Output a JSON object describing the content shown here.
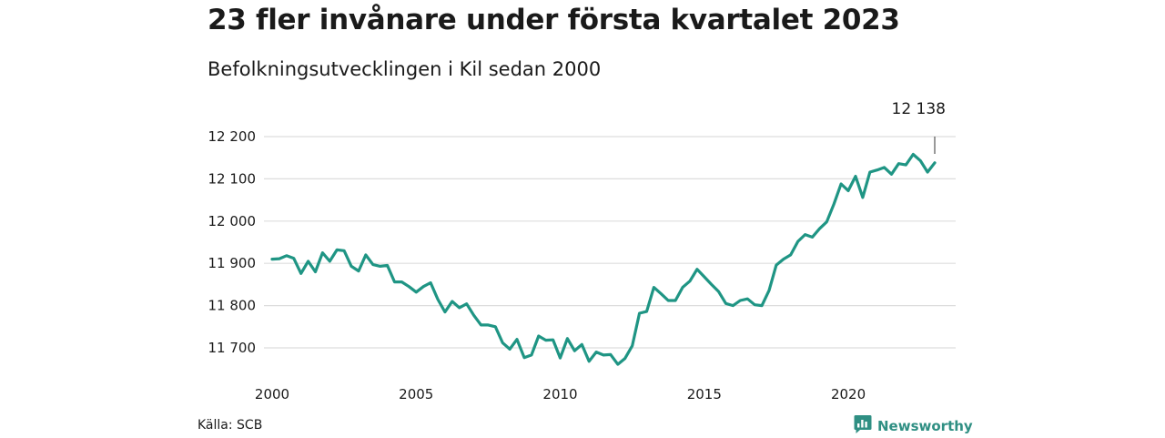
{
  "header": {
    "title": "23 fler invånare under första kvartalet 2023",
    "subtitle": "Befolkningsutvecklingen i Kil sedan 2000"
  },
  "footer": {
    "source": "Källa: SCB",
    "brand": "Newsworthy"
  },
  "colors": {
    "line": "#1f9584",
    "grid": "#dddddd",
    "brand": "#2f8f83"
  },
  "chart_data": {
    "type": "line",
    "title": "23 fler invånare under första kvartalet 2023",
    "subtitle": "Befolkningsutvecklingen i Kil sedan 2000",
    "xlabel": "",
    "ylabel": "",
    "xlim": [
      2000,
      2023
    ],
    "ylim": [
      11650,
      12220
    ],
    "grid": true,
    "x_ticks": [
      2000,
      2005,
      2010,
      2015,
      2020
    ],
    "x_tick_labels": [
      "2000",
      "2005",
      "2010",
      "2015",
      "2020"
    ],
    "y_ticks": [
      11700,
      11800,
      11900,
      12000,
      12100,
      12200
    ],
    "y_tick_labels": [
      "11 700",
      "11 800",
      "11 900",
      "12 000",
      "12 100",
      "12 200"
    ],
    "annotation": {
      "label": "12 138",
      "x": 2023.0,
      "y": 12138
    },
    "series": [
      {
        "x": [
          2000.0,
          2000.25,
          2000.5,
          2000.75,
          2001.0,
          2001.25,
          2001.5,
          2001.75,
          2002.0,
          2002.25,
          2002.5,
          2002.75,
          2003.0,
          2003.25,
          2003.5,
          2003.75,
          2004.0,
          2004.25,
          2004.5,
          2004.75,
          2005.0,
          2005.25,
          2005.5,
          2005.75,
          2006.0,
          2006.25,
          2006.5,
          2006.75,
          2007.0,
          2007.25,
          2007.5,
          2007.75,
          2008.0,
          2008.25,
          2008.5,
          2008.75,
          2009.0,
          2009.25,
          2009.5,
          2009.75,
          2010.0,
          2010.25,
          2010.5,
          2010.75,
          2011.0,
          2011.25,
          2011.5,
          2011.75,
          2012.0,
          2012.25,
          2012.5,
          2012.75,
          2013.0,
          2013.25,
          2013.5,
          2013.75,
          2014.0,
          2014.25,
          2014.5,
          2014.75,
          2015.0,
          2015.25,
          2015.5,
          2015.75,
          2016.0,
          2016.25,
          2016.5,
          2016.75,
          2017.0,
          2017.25,
          2017.5,
          2017.75,
          2018.0,
          2018.25,
          2018.5,
          2018.75,
          2019.0,
          2019.25,
          2019.5,
          2019.75,
          2020.0,
          2020.25,
          2020.5,
          2020.75,
          2021.0,
          2021.25,
          2021.5,
          2021.75,
          2022.0,
          2022.25,
          2022.5,
          2022.75,
          2023.0
        ],
        "values": [
          11910,
          11911,
          11918,
          11912,
          11876,
          11905,
          11880,
          11925,
          11905,
          11932,
          11930,
          11893,
          11882,
          11920,
          11897,
          11893,
          11895,
          11856,
          11856,
          11845,
          11832,
          11845,
          11854,
          11815,
          11785,
          11810,
          11795,
          11804,
          11777,
          11754,
          11754,
          11750,
          11712,
          11697,
          11720,
          11677,
          11683,
          11728,
          11718,
          11719,
          11676,
          11722,
          11693,
          11708,
          11668,
          11690,
          11683,
          11684,
          11661,
          11675,
          11705,
          11782,
          11786,
          11843,
          11828,
          11812,
          11812,
          11843,
          11858,
          11886,
          11868,
          11850,
          11833,
          11805,
          11800,
          11812,
          11816,
          11802,
          11800,
          11836,
          11896,
          11910,
          11920,
          11952,
          11968,
          11962,
          11982,
          11998,
          12040,
          12088,
          12072,
          12106,
          12056,
          12116,
          12121,
          12127,
          12111,
          12136,
          12133,
          12158,
          12143,
          12116,
          12138
        ]
      }
    ]
  }
}
